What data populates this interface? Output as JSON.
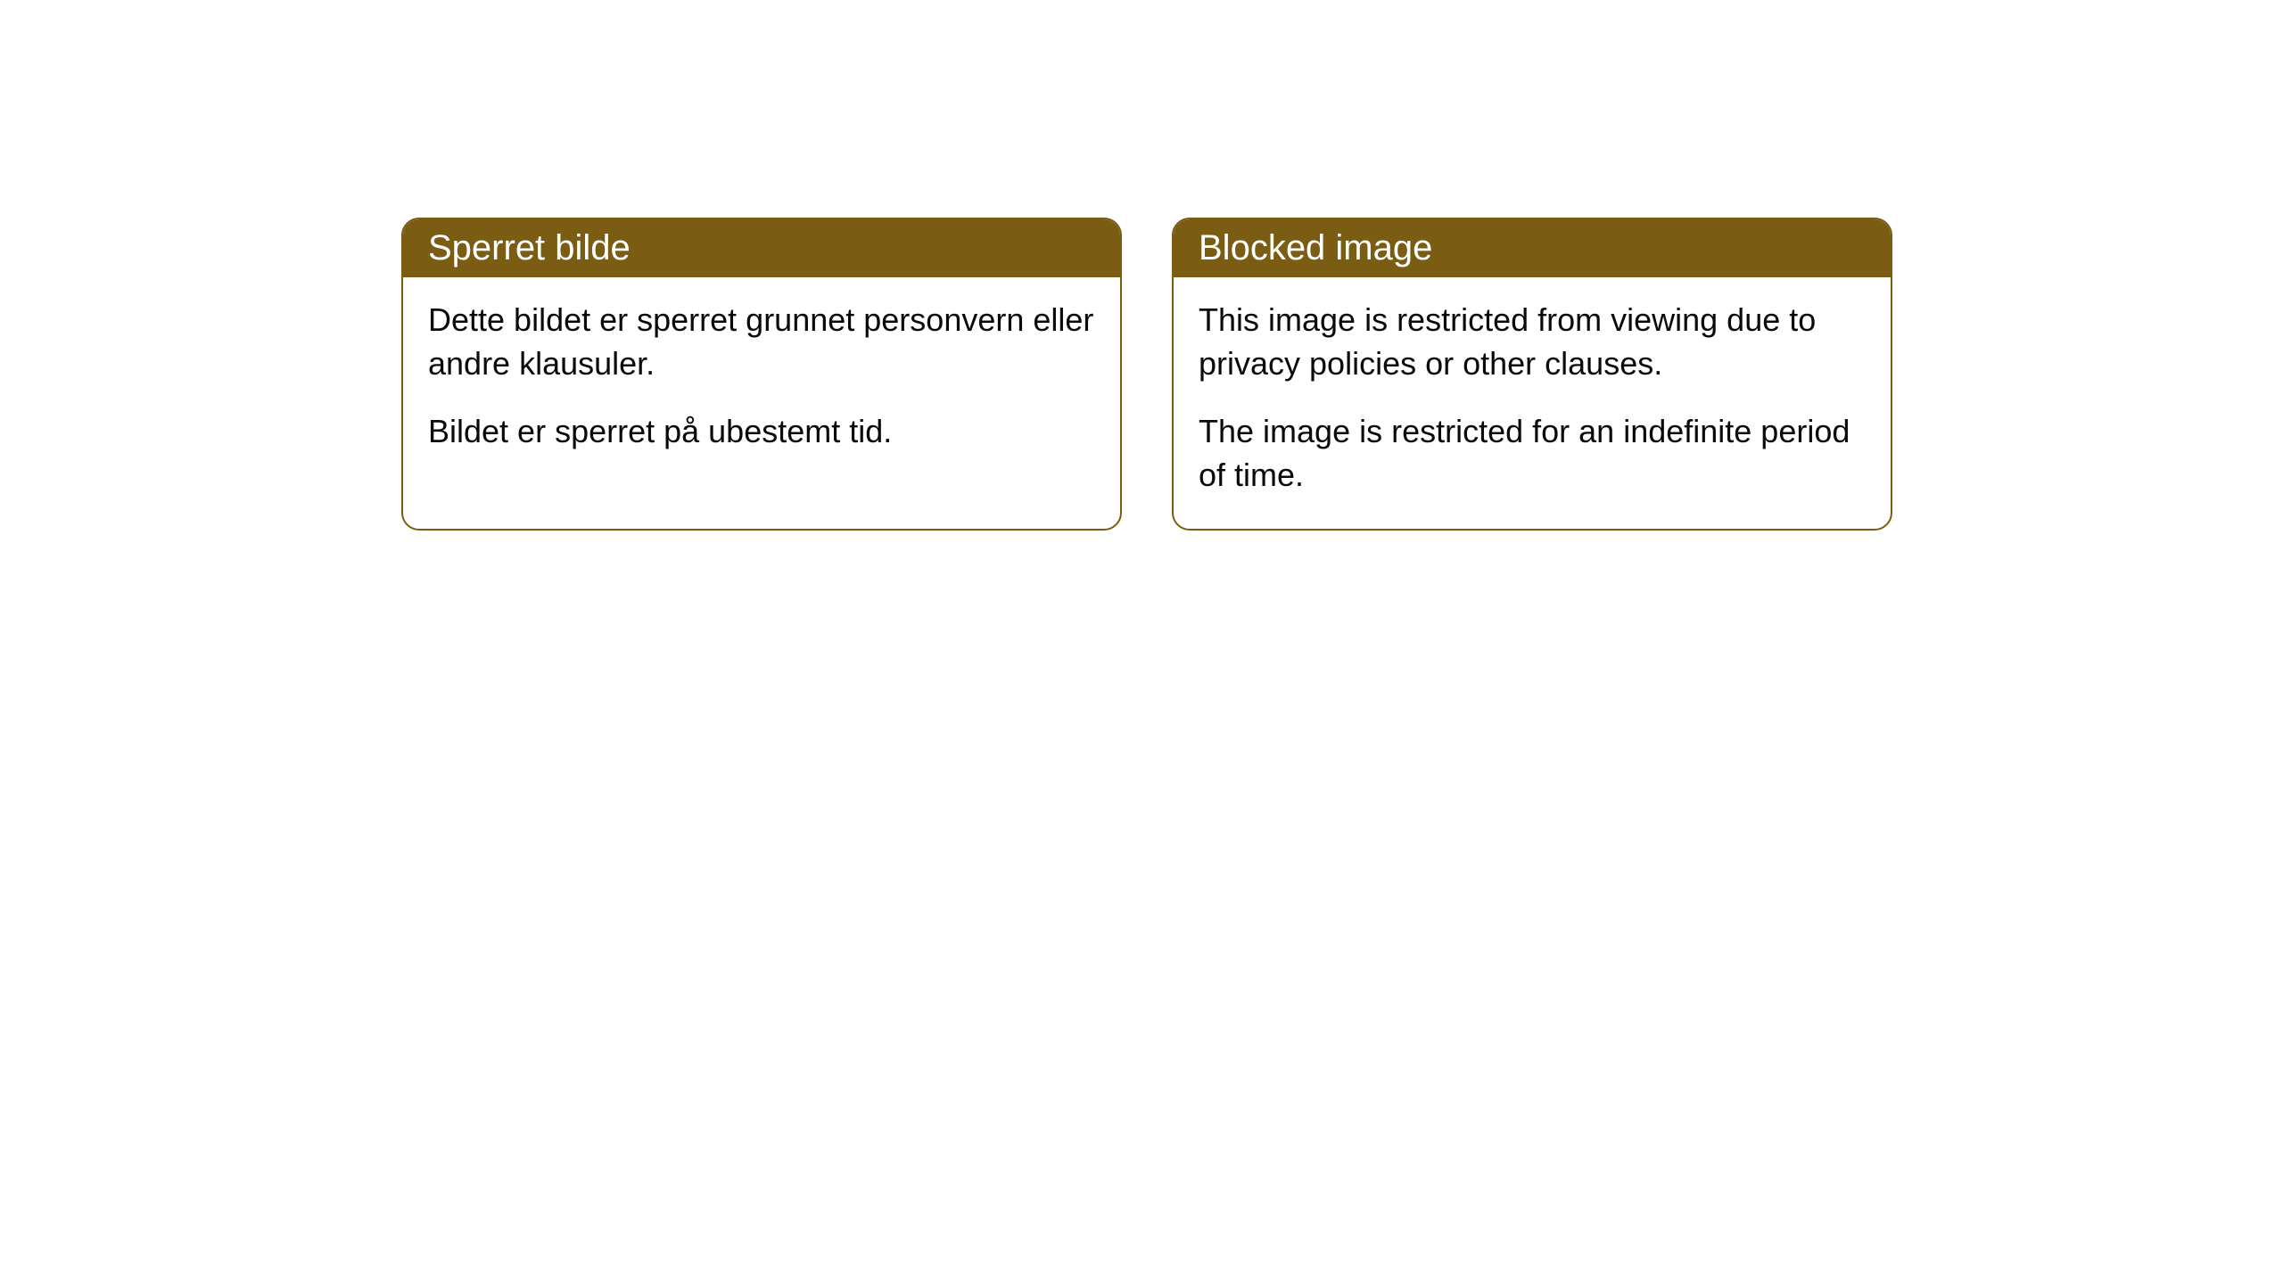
{
  "cards": [
    {
      "title": "Sperret bilde",
      "paragraph1": "Dette bildet er sperret grunnet personvern eller andre klausuler.",
      "paragraph2": "Bildet er sperret på ubestemt tid."
    },
    {
      "title": "Blocked image",
      "paragraph1": "This image is restricted from viewing due to privacy policies or other clauses.",
      "paragraph2": "The image is restricted for an indefinite period of time."
    }
  ],
  "styling": {
    "header_background_color": "#7a5d13",
    "header_text_color": "#ffffff",
    "border_color": "#7a5d13",
    "body_text_color": "#0a0a0a",
    "card_background_color": "#ffffff",
    "page_background_color": "#ffffff",
    "border_radius": 20,
    "header_font_size": 40,
    "body_font_size": 36
  }
}
